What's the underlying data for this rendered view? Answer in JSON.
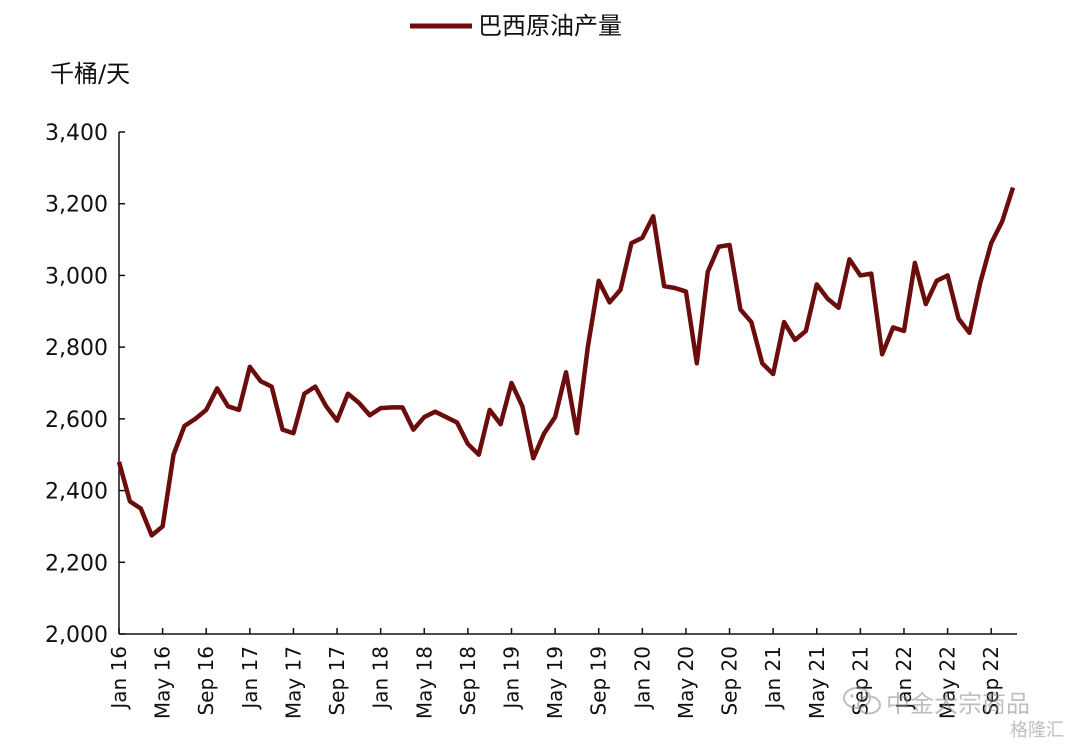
{
  "chart_data": {
    "type": "line",
    "title": "",
    "ylabel": "千桶/天",
    "xlabel": "",
    "ylim": [
      2000,
      3400
    ],
    "yticks": [
      "2,000",
      "2,200",
      "2,400",
      "2,600",
      "2,800",
      "3,000",
      "3,200",
      "3,400"
    ],
    "ytick_values": [
      2000,
      2200,
      2400,
      2600,
      2800,
      3000,
      3200,
      3400
    ],
    "xtick_labels": [
      "Jan 16",
      "May 16",
      "Sep 16",
      "Jan 17",
      "May 17",
      "Sep 17",
      "Jan 18",
      "May 18",
      "Sep 18",
      "Jan 19",
      "May 19",
      "Sep 19",
      "Jan 20",
      "May 20",
      "Sep 20",
      "Jan 21",
      "May 21",
      "Sep 21",
      "Jan 22",
      "May 22",
      "Sep 22"
    ],
    "legend_position": "top-center",
    "grid": false,
    "series": [
      {
        "name": "巴西原油产量",
        "color": "#6b0d0d",
        "start": "2016-01",
        "frequency": "monthly",
        "values": [
          2480,
          2370,
          2350,
          2275,
          2300,
          2500,
          2580,
          2600,
          2625,
          2685,
          2635,
          2625,
          2745,
          2705,
          2690,
          2570,
          2560,
          2670,
          2690,
          2635,
          2595,
          2670,
          2645,
          2610,
          2630,
          2632,
          2632,
          2570,
          2605,
          2620,
          2605,
          2590,
          2530,
          2500,
          2625,
          2585,
          2700,
          2635,
          2490,
          2560,
          2605,
          2730,
          2560,
          2800,
          2985,
          2925,
          2960,
          3090,
          3105,
          3165,
          2970,
          2965,
          2955,
          2755,
          3010,
          3080,
          3085,
          2905,
          2870,
          2755,
          2725,
          2870,
          2820,
          2845,
          2975,
          2935,
          2910,
          3045,
          3000,
          3005,
          2780,
          2855,
          2845,
          3035,
          2920,
          2985,
          3000,
          2880,
          2840,
          2980,
          3090,
          3150,
          3245
        ]
      }
    ]
  },
  "watermark": {
    "line1": "中金大宗商品",
    "line2": "格隆汇"
  }
}
